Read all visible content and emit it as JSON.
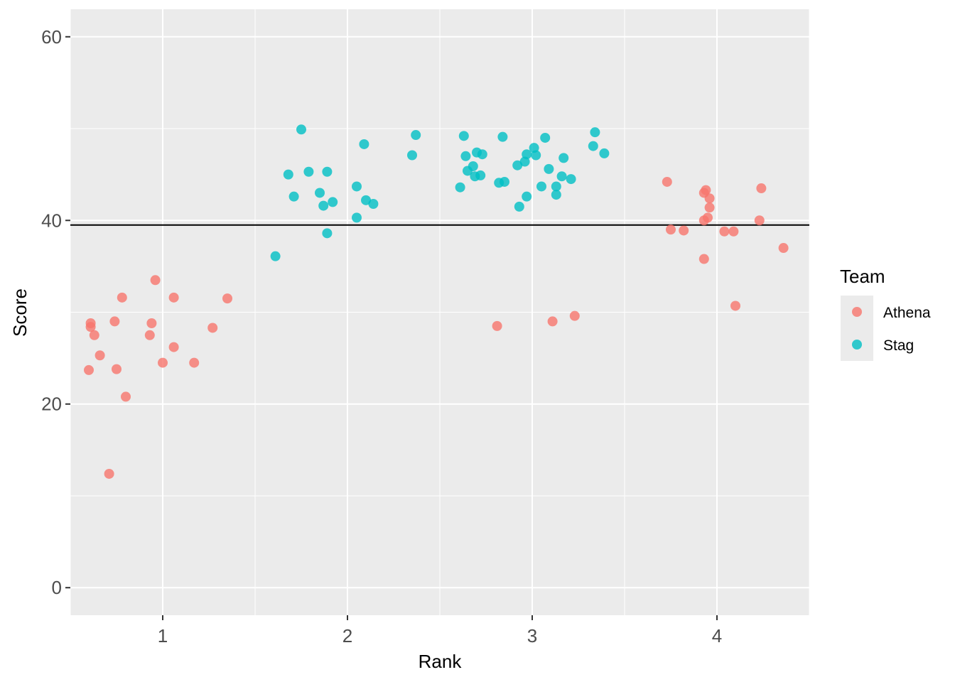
{
  "chart_data": {
    "type": "scatter",
    "xlabel": "Rank",
    "ylabel": "Score",
    "xlim": [
      0.5,
      4.5
    ],
    "ylim": [
      -3,
      63
    ],
    "x_ticks": [
      1,
      2,
      3,
      4
    ],
    "x_tick_labels": [
      "1",
      "2",
      "3",
      "4"
    ],
    "y_ticks": [
      0,
      20,
      40,
      60
    ],
    "y_tick_labels": [
      "0",
      "20",
      "40",
      "60"
    ],
    "hline": 39.5,
    "grid": true,
    "legend": {
      "title": "Team",
      "position": "right",
      "entries": [
        "Athena",
        "Stag"
      ]
    },
    "series": [
      {
        "name": "Athena",
        "color": "#F8766D",
        "points": [
          [
            0.6,
            23.7
          ],
          [
            0.61,
            28.4
          ],
          [
            0.61,
            28.8
          ],
          [
            0.63,
            27.5
          ],
          [
            0.66,
            25.3
          ],
          [
            0.71,
            12.4
          ],
          [
            0.74,
            29.0
          ],
          [
            0.75,
            23.8
          ],
          [
            0.78,
            31.6
          ],
          [
            0.8,
            20.8
          ],
          [
            0.93,
            27.5
          ],
          [
            0.94,
            28.8
          ],
          [
            0.96,
            33.5
          ],
          [
            1.0,
            24.5
          ],
          [
            1.06,
            31.6
          ],
          [
            1.06,
            26.2
          ],
          [
            1.17,
            24.5
          ],
          [
            1.27,
            28.3
          ],
          [
            1.35,
            31.5
          ],
          [
            2.81,
            28.5
          ],
          [
            3.11,
            29.0
          ],
          [
            3.23,
            29.6
          ],
          [
            3.73,
            44.2
          ],
          [
            3.75,
            39.0
          ],
          [
            3.82,
            38.9
          ],
          [
            3.93,
            43.0
          ],
          [
            3.94,
            43.3
          ],
          [
            3.93,
            40.0
          ],
          [
            3.93,
            35.8
          ],
          [
            3.95,
            40.3
          ],
          [
            3.96,
            42.4
          ],
          [
            3.96,
            41.4
          ],
          [
            4.04,
            38.8
          ],
          [
            4.09,
            38.8
          ],
          [
            4.1,
            30.7
          ],
          [
            4.23,
            40.0
          ],
          [
            4.24,
            43.5
          ],
          [
            4.36,
            37.0
          ]
        ]
      },
      {
        "name": "Stag",
        "color": "#00BFC4",
        "points": [
          [
            1.61,
            36.1
          ],
          [
            1.68,
            45.0
          ],
          [
            1.71,
            42.6
          ],
          [
            1.75,
            49.9
          ],
          [
            1.79,
            45.3
          ],
          [
            1.85,
            43.0
          ],
          [
            1.87,
            41.6
          ],
          [
            1.89,
            45.3
          ],
          [
            1.89,
            38.6
          ],
          [
            1.92,
            42.0
          ],
          [
            2.05,
            40.3
          ],
          [
            2.05,
            43.7
          ],
          [
            2.09,
            48.3
          ],
          [
            2.1,
            42.2
          ],
          [
            2.14,
            41.8
          ],
          [
            2.35,
            47.1
          ],
          [
            2.37,
            49.3
          ],
          [
            2.61,
            43.6
          ],
          [
            2.63,
            49.2
          ],
          [
            2.64,
            47.0
          ],
          [
            2.65,
            45.4
          ],
          [
            2.68,
            45.9
          ],
          [
            2.69,
            44.8
          ],
          [
            2.7,
            47.4
          ],
          [
            2.72,
            44.9
          ],
          [
            2.73,
            47.2
          ],
          [
            2.82,
            44.1
          ],
          [
            2.84,
            49.1
          ],
          [
            2.85,
            44.2
          ],
          [
            2.92,
            46.0
          ],
          [
            2.93,
            41.5
          ],
          [
            2.96,
            46.4
          ],
          [
            2.97,
            47.2
          ],
          [
            2.97,
            42.6
          ],
          [
            3.01,
            47.9
          ],
          [
            3.02,
            47.1
          ],
          [
            3.05,
            43.7
          ],
          [
            3.07,
            49.0
          ],
          [
            3.09,
            45.6
          ],
          [
            3.13,
            43.7
          ],
          [
            3.13,
            42.8
          ],
          [
            3.16,
            44.8
          ],
          [
            3.17,
            46.8
          ],
          [
            3.21,
            44.5
          ],
          [
            3.33,
            48.1
          ],
          [
            3.34,
            49.6
          ],
          [
            3.39,
            47.3
          ]
        ]
      }
    ]
  }
}
